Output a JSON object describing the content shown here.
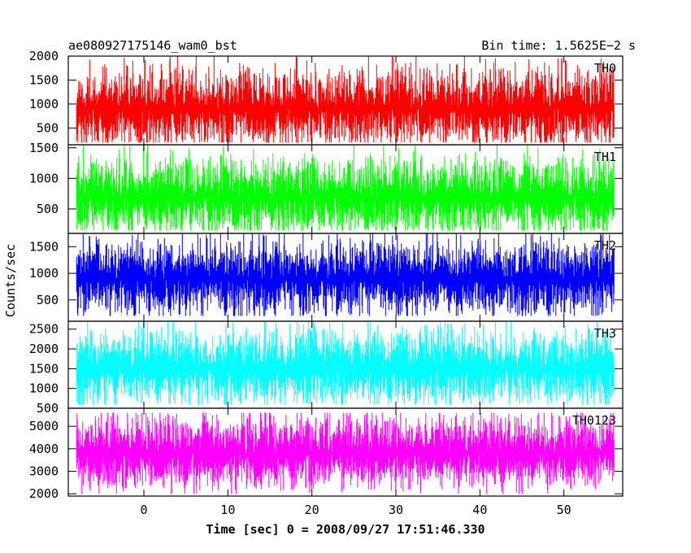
{
  "chart_data": {
    "type": "line",
    "title_left": "ae080927175146_wam0_bst",
    "title_right": "Bin time: 1.5625E−2 s",
    "xlabel": "Time [sec] 0 = 2008/09/27 17:51:46.330",
    "ylabel": "Counts/sec",
    "xlim": [
      -9,
      57
    ],
    "x_ticks": [
      0,
      10,
      20,
      30,
      40,
      50
    ],
    "x_tick_labels": [
      "0",
      "10",
      "20",
      "30",
      "40",
      "50"
    ],
    "x_data_range": [
      -8,
      56
    ],
    "grid": false,
    "panels": [
      {
        "name": "TH0",
        "color": "#ff0000",
        "ylim": [
          150,
          2000
        ],
        "y_ticks": [
          500,
          1000,
          1500,
          2000
        ],
        "y_tick_labels": [
          "500",
          "1000",
          "1500",
          "2000"
        ],
        "mean": 900,
        "min": 200,
        "max": 2000
      },
      {
        "name": "TH1",
        "color": "#00ff00",
        "ylim": [
          100,
          1550
        ],
        "y_ticks": [
          500,
          1000,
          1500
        ],
        "y_tick_labels": [
          "500",
          "1000",
          "1500"
        ],
        "mean": 700,
        "min": 150,
        "max": 1550
      },
      {
        "name": "TH2",
        "color": "#0000ff",
        "ylim": [
          100,
          1750
        ],
        "y_ticks": [
          500,
          1000,
          1500
        ],
        "y_tick_labels": [
          "500",
          "1000",
          "1500"
        ],
        "mean": 900,
        "min": 200,
        "max": 1750
      },
      {
        "name": "TH3",
        "color": "#00ffff",
        "ylim": [
          500,
          2700
        ],
        "y_ticks": [
          500,
          1000,
          1500,
          2000,
          2500
        ],
        "y_tick_labels": [
          "500",
          "1000",
          "1500",
          "2000",
          "2500"
        ],
        "mean": 1500,
        "min": 600,
        "max": 2700
      },
      {
        "name": "TH0123",
        "color": "#ff00ff",
        "ylim": [
          1900,
          5800
        ],
        "y_ticks": [
          2000,
          3000,
          4000,
          5000
        ],
        "y_tick_labels": [
          "2000",
          "3000",
          "4000",
          "5000"
        ],
        "mean": 3800,
        "min": 2000,
        "max": 5600
      }
    ]
  }
}
